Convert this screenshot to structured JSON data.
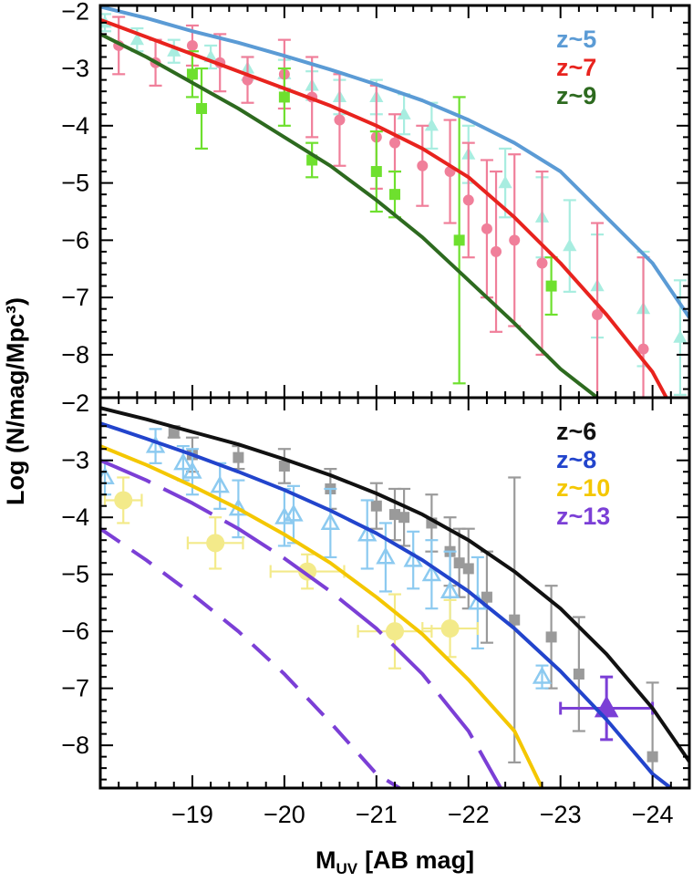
{
  "chart_data": [
    {
      "type": "scatter",
      "panel": "top",
      "xlim": [
        -18.0,
        -24.4
      ],
      "ylim": [
        -8.75,
        -1.9
      ],
      "xticks": [
        -19,
        -20,
        -21,
        -22,
        -23,
        -24
      ],
      "yticks": [
        -2,
        -3,
        -4,
        -5,
        -6,
        -7,
        -8
      ],
      "ytick_labels": [
        "−2",
        "−3",
        "−4",
        "−5",
        "−6",
        "−7",
        "−8"
      ],
      "legend": [
        {
          "label": "z~5",
          "color": "#5b9bd5"
        },
        {
          "label": "z~7",
          "color": "#e8231e"
        },
        {
          "label": "z~9",
          "color": "#2d6a1f"
        }
      ],
      "series": [
        {
          "name": "z~5 model",
          "kind": "line",
          "color": "#5b9bd5",
          "style": "solid",
          "x": [
            -18.0,
            -18.5,
            -19.0,
            -19.5,
            -20.0,
            -20.5,
            -21.0,
            -21.5,
            -22.0,
            -22.5,
            -23.0,
            -23.5,
            -24.0,
            -24.4
          ],
          "y": [
            -1.92,
            -2.12,
            -2.35,
            -2.55,
            -2.78,
            -3.02,
            -3.28,
            -3.56,
            -3.9,
            -4.3,
            -4.8,
            -5.6,
            -6.4,
            -7.35
          ]
        },
        {
          "name": "z~7 model",
          "kind": "line",
          "color": "#e8231e",
          "style": "solid",
          "x": [
            -18.0,
            -18.5,
            -19.0,
            -19.5,
            -20.0,
            -20.5,
            -21.0,
            -21.5,
            -22.0,
            -22.5,
            -23.0,
            -23.5,
            -24.0,
            -24.15
          ],
          "y": [
            -2.15,
            -2.45,
            -2.75,
            -3.05,
            -3.35,
            -3.65,
            -4.0,
            -4.4,
            -4.9,
            -5.6,
            -6.4,
            -7.3,
            -8.3,
            -8.75
          ]
        },
        {
          "name": "z~9 model",
          "kind": "line",
          "color": "#2d6a1f",
          "style": "solid",
          "x": [
            -18.0,
            -18.5,
            -19.0,
            -19.5,
            -20.0,
            -20.5,
            -21.0,
            -21.5,
            -22.0,
            -22.5,
            -23.0,
            -23.4
          ],
          "y": [
            -2.4,
            -2.8,
            -3.25,
            -3.7,
            -4.2,
            -4.7,
            -5.3,
            -5.95,
            -6.7,
            -7.45,
            -8.25,
            -8.75
          ]
        },
        {
          "name": "z~5 data",
          "kind": "scatter",
          "marker": "triangle",
          "color": "#a8ede0",
          "x": [
            -18.05,
            -18.4,
            -18.8,
            -19.2,
            -19.6,
            -20.0,
            -20.3,
            -20.6,
            -21.0,
            -21.3,
            -21.6,
            -22.0,
            -22.4,
            -22.8,
            -23.1,
            -23.4,
            -23.9,
            -24.3
          ],
          "y": [
            -2.2,
            -2.5,
            -2.7,
            -2.8,
            -3.0,
            -3.1,
            -3.3,
            -3.5,
            -3.5,
            -3.8,
            -4.0,
            -4.5,
            -5.0,
            -5.6,
            -6.1,
            -6.8,
            -7.2,
            -7.7
          ],
          "yerr": [
            0.15,
            0.2,
            0.2,
            0.2,
            0.2,
            0.25,
            0.25,
            0.3,
            0.3,
            0.35,
            0.4,
            0.5,
            0.6,
            0.7,
            0.8,
            0.9,
            1.0,
            1.0
          ]
        },
        {
          "name": "z~7 data",
          "kind": "scatter",
          "marker": "circle",
          "color": "#f07f9a",
          "x": [
            -18.2,
            -18.6,
            -19.0,
            -19.3,
            -19.6,
            -20.0,
            -20.3,
            -20.6,
            -21.0,
            -21.2,
            -21.5,
            -21.8,
            -22.0,
            -22.2,
            -22.3,
            -22.5,
            -22.8,
            -23.4,
            -23.9
          ],
          "y": [
            -2.6,
            -2.9,
            -2.6,
            -2.9,
            -3.2,
            -3.1,
            -3.5,
            -3.9,
            -4.2,
            -4.3,
            -4.7,
            -4.8,
            -5.3,
            -5.8,
            -6.2,
            -6.0,
            -6.4,
            -7.3,
            -7.9
          ],
          "yerr": [
            0.5,
            0.4,
            0.35,
            0.5,
            0.4,
            0.6,
            0.7,
            0.8,
            0.9,
            0.5,
            0.7,
            0.9,
            1.0,
            1.2,
            1.4,
            1.5,
            1.6,
            1.6,
            1.6
          ]
        },
        {
          "name": "z~9 data",
          "kind": "scatter",
          "marker": "square",
          "color": "#6ee02e",
          "x": [
            -19.0,
            -19.1,
            -20.0,
            -20.3,
            -21.0,
            -21.2,
            -21.9,
            -22.9
          ],
          "y": [
            -3.1,
            -3.7,
            -3.5,
            -4.6,
            -4.8,
            -5.2,
            -6.0,
            -6.8
          ],
          "yerr": [
            0.4,
            0.7,
            0.5,
            0.3,
            0.7,
            0.4,
            2.5,
            0.5
          ]
        }
      ]
    },
    {
      "type": "scatter",
      "panel": "bottom",
      "xlim": [
        -18.0,
        -24.4
      ],
      "ylim": [
        -8.75,
        -1.9
      ],
      "xticks": [
        -19,
        -20,
        -21,
        -22,
        -23,
        -24
      ],
      "yticks": [
        -2,
        -3,
        -4,
        -5,
        -6,
        -7,
        -8
      ],
      "xtick_labels": [
        "−19",
        "−20",
        "−21",
        "−22",
        "−23",
        "−24"
      ],
      "ytick_labels": [
        "−2",
        "−3",
        "−4",
        "−5",
        "−6",
        "−7",
        "−8"
      ],
      "legend": [
        {
          "label": "z~6",
          "color": "#111111"
        },
        {
          "label": "z~8",
          "color": "#2244cc"
        },
        {
          "label": "z~10",
          "color": "#f4c700"
        },
        {
          "label": "z~13",
          "color": "#7b3fd6"
        }
      ],
      "series": [
        {
          "name": "z~6 model",
          "kind": "line",
          "color": "#111111",
          "style": "solid",
          "x": [
            -18.0,
            -18.5,
            -19.0,
            -19.5,
            -20.0,
            -20.5,
            -21.0,
            -21.5,
            -22.0,
            -22.5,
            -23.0,
            -23.5,
            -24.0,
            -24.45
          ],
          "y": [
            -2.08,
            -2.28,
            -2.5,
            -2.72,
            -2.98,
            -3.26,
            -3.58,
            -3.95,
            -4.4,
            -4.95,
            -5.6,
            -6.4,
            -7.35,
            -8.4
          ]
        },
        {
          "name": "z~8 model",
          "kind": "line",
          "color": "#2244cc",
          "style": "solid",
          "x": [
            -18.0,
            -18.5,
            -19.0,
            -19.5,
            -20.0,
            -20.5,
            -21.0,
            -21.5,
            -22.0,
            -22.5,
            -23.0,
            -23.5,
            -24.0,
            -24.2
          ],
          "y": [
            -2.35,
            -2.62,
            -2.9,
            -3.2,
            -3.52,
            -3.88,
            -4.28,
            -4.75,
            -5.3,
            -5.95,
            -6.7,
            -7.55,
            -8.5,
            -8.75
          ]
        },
        {
          "name": "z~10 model",
          "kind": "line",
          "color": "#f4c700",
          "style": "solid",
          "x": [
            -18.0,
            -18.5,
            -19.0,
            -19.5,
            -20.0,
            -20.5,
            -21.0,
            -21.5,
            -22.0,
            -22.5,
            -22.8
          ],
          "y": [
            -2.75,
            -3.08,
            -3.45,
            -3.85,
            -4.3,
            -4.8,
            -5.4,
            -6.05,
            -6.85,
            -7.75,
            -8.75
          ]
        },
        {
          "name": "z~13 model",
          "kind": "line",
          "color": "#7b3fd6",
          "style": "long-dash",
          "x": [
            -18.0,
            -18.5,
            -19.0,
            -19.5,
            -20.0,
            -20.5,
            -21.0,
            -21.5,
            -22.0,
            -22.35
          ],
          "y": [
            -3.0,
            -3.35,
            -3.75,
            -4.2,
            -4.72,
            -5.3,
            -5.95,
            -6.75,
            -7.75,
            -8.75
          ]
        },
        {
          "name": "z~13 model (lower)",
          "kind": "line",
          "color": "#7b3fd6",
          "style": "dashed",
          "x": [
            -18.0,
            -18.5,
            -19.0,
            -19.5,
            -20.0,
            -20.5,
            -21.0,
            -21.25
          ],
          "y": [
            -4.2,
            -4.75,
            -5.35,
            -6.0,
            -6.75,
            -7.6,
            -8.5,
            -8.75
          ]
        },
        {
          "name": "z~6 data",
          "kind": "scatter",
          "marker": "square",
          "color": "#9a9a9a",
          "x": [
            -18.8,
            -19.0,
            -19.5,
            -20.0,
            -20.5,
            -21.0,
            -21.2,
            -21.3,
            -21.6,
            -21.8,
            -21.9,
            -22.0,
            -22.2,
            -22.5,
            -22.9,
            -23.2,
            -24.0
          ],
          "y": [
            -2.5,
            -2.9,
            -2.95,
            -3.1,
            -3.5,
            -3.8,
            -3.95,
            -4.0,
            -4.1,
            -4.6,
            -4.8,
            -4.9,
            -5.4,
            -5.8,
            -6.1,
            -6.75,
            -8.2
          ],
          "yerr": [
            0.1,
            0.3,
            0.2,
            0.3,
            0.35,
            0.4,
            0.45,
            0.5,
            0.5,
            0.6,
            0.6,
            0.7,
            0.8,
            2.5,
            0.9,
            1.0,
            1.3
          ]
        },
        {
          "name": "z~8 data",
          "kind": "scatter",
          "marker": "open-triangle",
          "color": "#8ccaf0",
          "x": [
            -18.05,
            -18.6,
            -18.9,
            -19.0,
            -19.3,
            -19.5,
            -20.0,
            -20.1,
            -20.5,
            -20.9,
            -21.1,
            -21.4,
            -21.6,
            -21.8,
            -22.1,
            -22.8
          ],
          "y": [
            -3.3,
            -2.75,
            -3.05,
            -3.2,
            -3.45,
            -3.85,
            -4.0,
            -3.95,
            -4.1,
            -4.3,
            -4.7,
            -4.75,
            -5.0,
            -5.3,
            -5.5,
            -6.8
          ],
          "yerr": [
            0.3,
            0.3,
            0.3,
            0.4,
            0.4,
            0.5,
            0.5,
            0.5,
            0.6,
            0.6,
            0.6,
            0.5,
            0.6,
            0.7,
            0.8,
            0.2
          ]
        },
        {
          "name": "z~10 data",
          "kind": "scatter",
          "marker": "circle",
          "color": "#f3ea8a",
          "x": [
            -18.25,
            -19.25,
            -20.25,
            -21.2,
            -21.8
          ],
          "y": [
            -3.7,
            -4.45,
            -4.95,
            -6.0,
            -5.95
          ],
          "yerr": [
            0.4,
            0.45,
            0.3,
            0.65,
            0.5
          ],
          "xerr": [
            0.2,
            0.3,
            0.4,
            0.4,
            0.3
          ]
        },
        {
          "name": "z~13 data",
          "kind": "scatter",
          "marker": "triangle",
          "color": "#7b3fd6",
          "x": [
            -23.5
          ],
          "y": [
            -7.35
          ],
          "yerr": [
            0.55
          ],
          "xerr": [
            0.5
          ]
        }
      ]
    }
  ],
  "axes": {
    "xlabel_main": "M",
    "xlabel_sub": "UV",
    "xlabel_unit": "[AB mag]",
    "ylabel": "Log (N/mag/Mpc³)"
  }
}
